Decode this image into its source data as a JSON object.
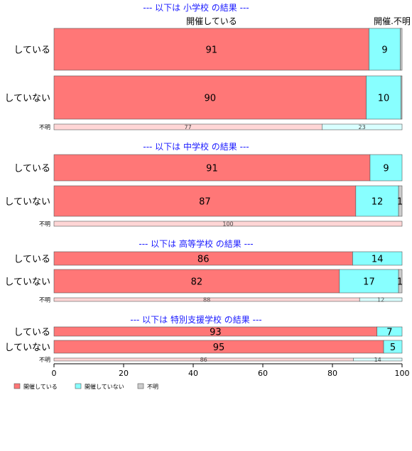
{
  "chart_data": {
    "type": "bar",
    "orientation": "horizontal",
    "stacked": true,
    "percent": true,
    "xlim": [
      0,
      100
    ],
    "xticks": [
      0,
      20,
      40,
      60,
      80,
      100
    ],
    "column_headers": [
      "開催している",
      "開催.不明"
    ],
    "legend": {
      "position": "bottom-left",
      "entries": [
        {
          "name": "開催している",
          "color": "#ff7777"
        },
        {
          "name": "開催していない",
          "color": "#88ffff"
        },
        {
          "name": "不明",
          "color": "#cccccc"
        }
      ]
    },
    "sections": [
      {
        "title": "--- 以下は 小学校 の結果 ---",
        "rows": [
          {
            "label": "している",
            "values": [
              90.5,
              9,
              0.5
            ],
            "labels": [
              "91",
              "9",
              ""
            ],
            "small": false
          },
          {
            "label": "していない",
            "values": [
              89.7,
              10,
              0.3
            ],
            "labels": [
              "90",
              "10",
              ""
            ],
            "small": false
          },
          {
            "label": "不明",
            "values": [
              77,
              23,
              0
            ],
            "labels": [
              "77",
              "23",
              ""
            ],
            "small": true
          }
        ]
      },
      {
        "title": "--- 以下は 中学校 の結果 ---",
        "rows": [
          {
            "label": "している",
            "values": [
              90.8,
              9.2,
              0
            ],
            "labels": [
              "91",
              "9",
              ""
            ],
            "small": false
          },
          {
            "label": "していない",
            "values": [
              86.7,
              12.3,
              1
            ],
            "labels": [
              "87",
              "12",
              "1"
            ],
            "small": false
          },
          {
            "label": "不明",
            "values": [
              100,
              0,
              0
            ],
            "labels": [
              "100",
              "",
              ""
            ],
            "small": true
          }
        ]
      },
      {
        "title": "--- 以下は 高等学校 の結果 ---",
        "rows": [
          {
            "label": "している",
            "values": [
              85.8,
              14.2,
              0
            ],
            "labels": [
              "86",
              "14",
              ""
            ],
            "small": false
          },
          {
            "label": "していない",
            "values": [
              82,
              17,
              1
            ],
            "labels": [
              "82",
              "17",
              "1"
            ],
            "small": false
          },
          {
            "label": "不明",
            "values": [
              87.8,
              12.2,
              0
            ],
            "labels": [
              "88",
              "12",
              ""
            ],
            "small": true
          }
        ]
      },
      {
        "title": "--- 以下は 特別支援学校 の結果 ---",
        "rows": [
          {
            "label": "している",
            "values": [
              92.8,
              7.2,
              0
            ],
            "labels": [
              "93",
              "7",
              ""
            ],
            "small": false
          },
          {
            "label": "していない",
            "values": [
              94.7,
              5.3,
              0
            ],
            "labels": [
              "95",
              "5",
              ""
            ],
            "small": false
          },
          {
            "label": "不明",
            "values": [
              86,
              14,
              0
            ],
            "labels": [
              "86",
              "14",
              ""
            ],
            "small": true
          }
        ]
      }
    ]
  }
}
